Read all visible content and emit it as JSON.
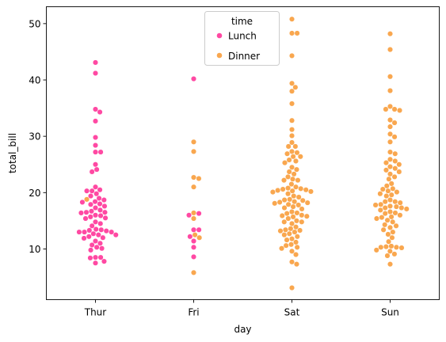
{
  "chart_data": {
    "type": "scatter",
    "style": "swarm",
    "xlabel": "day",
    "ylabel": "total_bill",
    "categories": [
      "Thur",
      "Fri",
      "Sat",
      "Sun"
    ],
    "ylim": [
      1.0,
      53.0
    ],
    "yticks": [
      10,
      20,
      30,
      40,
      50
    ],
    "grid": false,
    "legend": {
      "title": "time",
      "placement": "top-center",
      "entries": [
        {
          "label": "Lunch",
          "color": "#ff49a3"
        },
        {
          "label": "Dinner",
          "color": "#f9a74f"
        }
      ]
    },
    "series": [
      {
        "name": "Lunch",
        "color": "#ff49a3",
        "points": {
          "Thur": [
            43.1,
            41.2,
            34.8,
            34.3,
            32.7,
            29.8,
            28.4,
            27.2,
            27.2,
            25.0,
            24.1,
            23.7,
            21.0,
            20.5,
            20.3,
            20.3,
            19.8,
            19.4,
            19.0,
            18.7,
            18.4,
            18.3,
            18.0,
            17.9,
            17.6,
            17.3,
            16.9,
            16.7,
            16.5,
            16.5,
            16.4,
            16.0,
            15.9,
            15.7,
            15.5,
            15.4,
            14.8,
            14.5,
            14.1,
            13.5,
            13.4,
            13.3,
            13.2,
            13.0,
            13.0,
            13.0,
            12.7,
            12.5,
            12.5,
            12.2,
            12.0,
            11.9,
            11.4,
            11.0,
            10.7,
            10.3,
            10.1,
            9.8,
            8.5,
            8.5,
            8.4,
            7.8,
            7.5
          ],
          "Fri": [
            40.2,
            16.3,
            16.0,
            13.4,
            13.4,
            12.2,
            11.4,
            10.3,
            8.6
          ],
          "Sat": [],
          "Sun": []
        }
      },
      {
        "name": "Dinner",
        "color": "#f9a74f",
        "points": {
          "Thur": [
            18.8
          ],
          "Fri": [
            29.0,
            27.3,
            22.7,
            22.5,
            21.0,
            16.4,
            15.4,
            12.5,
            12.0,
            5.8
          ],
          "Sat": [
            50.8,
            48.3,
            48.3,
            44.3,
            39.4,
            38.7,
            38.0,
            35.8,
            32.8,
            31.2,
            30.1,
            28.9,
            28.2,
            28.2,
            27.3,
            27.1,
            26.9,
            26.4,
            26.4,
            25.8,
            25.6,
            25.3,
            24.5,
            24.1,
            23.7,
            23.3,
            22.8,
            22.4,
            22.2,
            22.2,
            21.5,
            21.0,
            20.8,
            20.7,
            20.6,
            20.5,
            20.4,
            20.3,
            20.2,
            20.1,
            19.8,
            19.4,
            19.2,
            18.8,
            18.7,
            18.6,
            18.4,
            18.3,
            18.2,
            18.1,
            17.9,
            17.8,
            17.5,
            17.3,
            17.1,
            16.6,
            16.4,
            16.3,
            16.0,
            15.9,
            15.8,
            15.7,
            15.4,
            15.0,
            14.8,
            14.8,
            14.5,
            13.9,
            13.6,
            13.4,
            13.3,
            13.2,
            13.0,
            12.7,
            12.5,
            12.2,
            11.8,
            11.6,
            11.2,
            10.8,
            10.6,
            10.3,
            10.1,
            9.6,
            9.0,
            7.7,
            7.3,
            3.1
          ],
          "Sun": [
            48.2,
            45.4,
            40.6,
            38.1,
            35.3,
            34.8,
            34.8,
            34.6,
            32.9,
            32.4,
            31.7,
            30.4,
            29.9,
            29.0,
            27.2,
            26.9,
            25.9,
            25.6,
            25.3,
            25.0,
            24.6,
            24.3,
            24.0,
            23.7,
            23.3,
            22.8,
            22.4,
            21.6,
            21.2,
            20.7,
            20.6,
            20.3,
            20.1,
            19.8,
            19.6,
            19.4,
            18.7,
            18.4,
            18.4,
            18.2,
            17.9,
            17.8,
            17.6,
            17.5,
            17.3,
            17.3,
            17.1,
            16.9,
            16.6,
            16.4,
            16.3,
            16.0,
            15.7,
            15.6,
            15.4,
            15.1,
            14.8,
            14.3,
            14.1,
            13.8,
            13.4,
            13.0,
            12.6,
            12.0,
            11.3,
            10.5,
            10.4,
            10.3,
            10.3,
            10.2,
            9.8,
            9.6,
            9.1,
            8.8,
            7.3
          ]
        }
      }
    ]
  }
}
